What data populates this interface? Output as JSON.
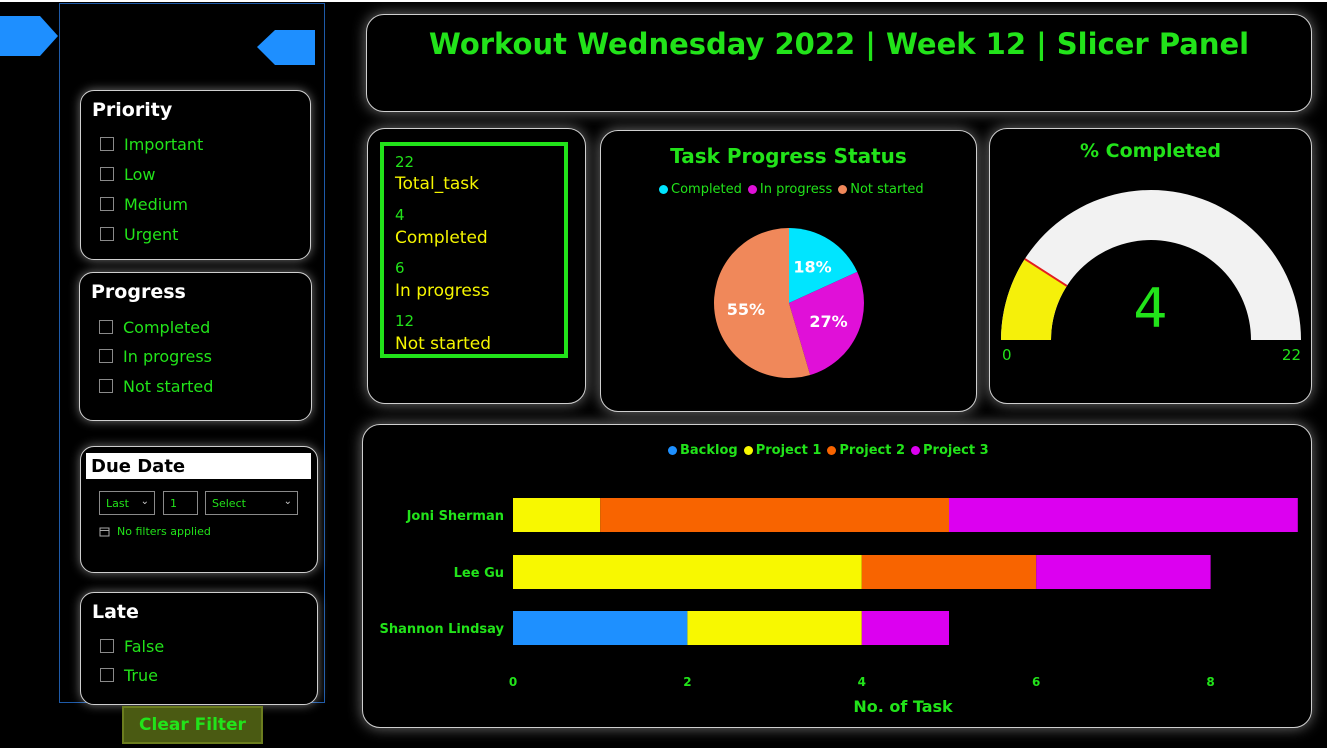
{
  "dashboard": {
    "title": "Workout Wednesday 2022 | Week 12 | Slicer Panel"
  },
  "slicers": {
    "priority": {
      "title": "Priority",
      "options": [
        "Important",
        "Low",
        "Medium",
        "Urgent"
      ]
    },
    "progress": {
      "title": "Progress",
      "options": [
        "Completed",
        "In progress",
        "Not started"
      ]
    },
    "due_date": {
      "title": "Due Date",
      "relative": "Last",
      "count": "1",
      "unit": "Select",
      "status": "No filters applied"
    },
    "late": {
      "title": "Late",
      "options": [
        "False",
        "True"
      ]
    },
    "clear_button": "Clear Filter"
  },
  "kpis": [
    {
      "value": "22",
      "label": "Total_task"
    },
    {
      "value": "4",
      "label": "Completed"
    },
    {
      "value": "6",
      "label": "In progress"
    },
    {
      "value": "12",
      "label": "Not started"
    }
  ],
  "pie": {
    "title": "Task Progress Status",
    "legend": [
      {
        "name": "Completed",
        "color": "#00e5ff"
      },
      {
        "name": "In progress",
        "color": "#e010d8"
      },
      {
        "name": "Not started",
        "color": "#f0885a"
      }
    ],
    "slice_labels": [
      "18%",
      "27%",
      "55%"
    ]
  },
  "gauge": {
    "title": "% Completed",
    "value_label": "4",
    "min_label": "0",
    "max_label": "22"
  },
  "bar": {
    "xlabel": "No. of Task",
    "legend": [
      {
        "name": "Backlog",
        "color": "#1e90ff"
      },
      {
        "name": "Project 1",
        "color": "#f8f800"
      },
      {
        "name": "Project 2",
        "color": "#f86400"
      },
      {
        "name": "Project 3",
        "color": "#dc00f0"
      }
    ],
    "tick_labels": [
      "0",
      "2",
      "4",
      "6",
      "8"
    ]
  },
  "chart_data": [
    {
      "type": "pie",
      "title": "Task Progress Status",
      "categories": [
        "Completed",
        "In progress",
        "Not started"
      ],
      "values": [
        4,
        6,
        12
      ],
      "labels": [
        "18%",
        "27%",
        "55%"
      ]
    },
    {
      "type": "gauge",
      "title": "% Completed",
      "value": 4,
      "min": 0,
      "max": 22
    },
    {
      "type": "bar",
      "orientation": "horizontal",
      "stacked": true,
      "categories": [
        "Joni Sherman",
        "Lee Gu",
        "Shannon Lindsay"
      ],
      "series": [
        {
          "name": "Backlog",
          "values": [
            0,
            0,
            2
          ]
        },
        {
          "name": "Project 1",
          "values": [
            1,
            4,
            2
          ]
        },
        {
          "name": "Project 2",
          "values": [
            4,
            2,
            0
          ]
        },
        {
          "name": "Project 3",
          "values": [
            4,
            2,
            1
          ]
        }
      ],
      "xlabel": "No. of Task",
      "xlim": [
        0,
        9
      ],
      "xticks": [
        0,
        2,
        4,
        6,
        8
      ],
      "legend_position": "top-center"
    }
  ]
}
